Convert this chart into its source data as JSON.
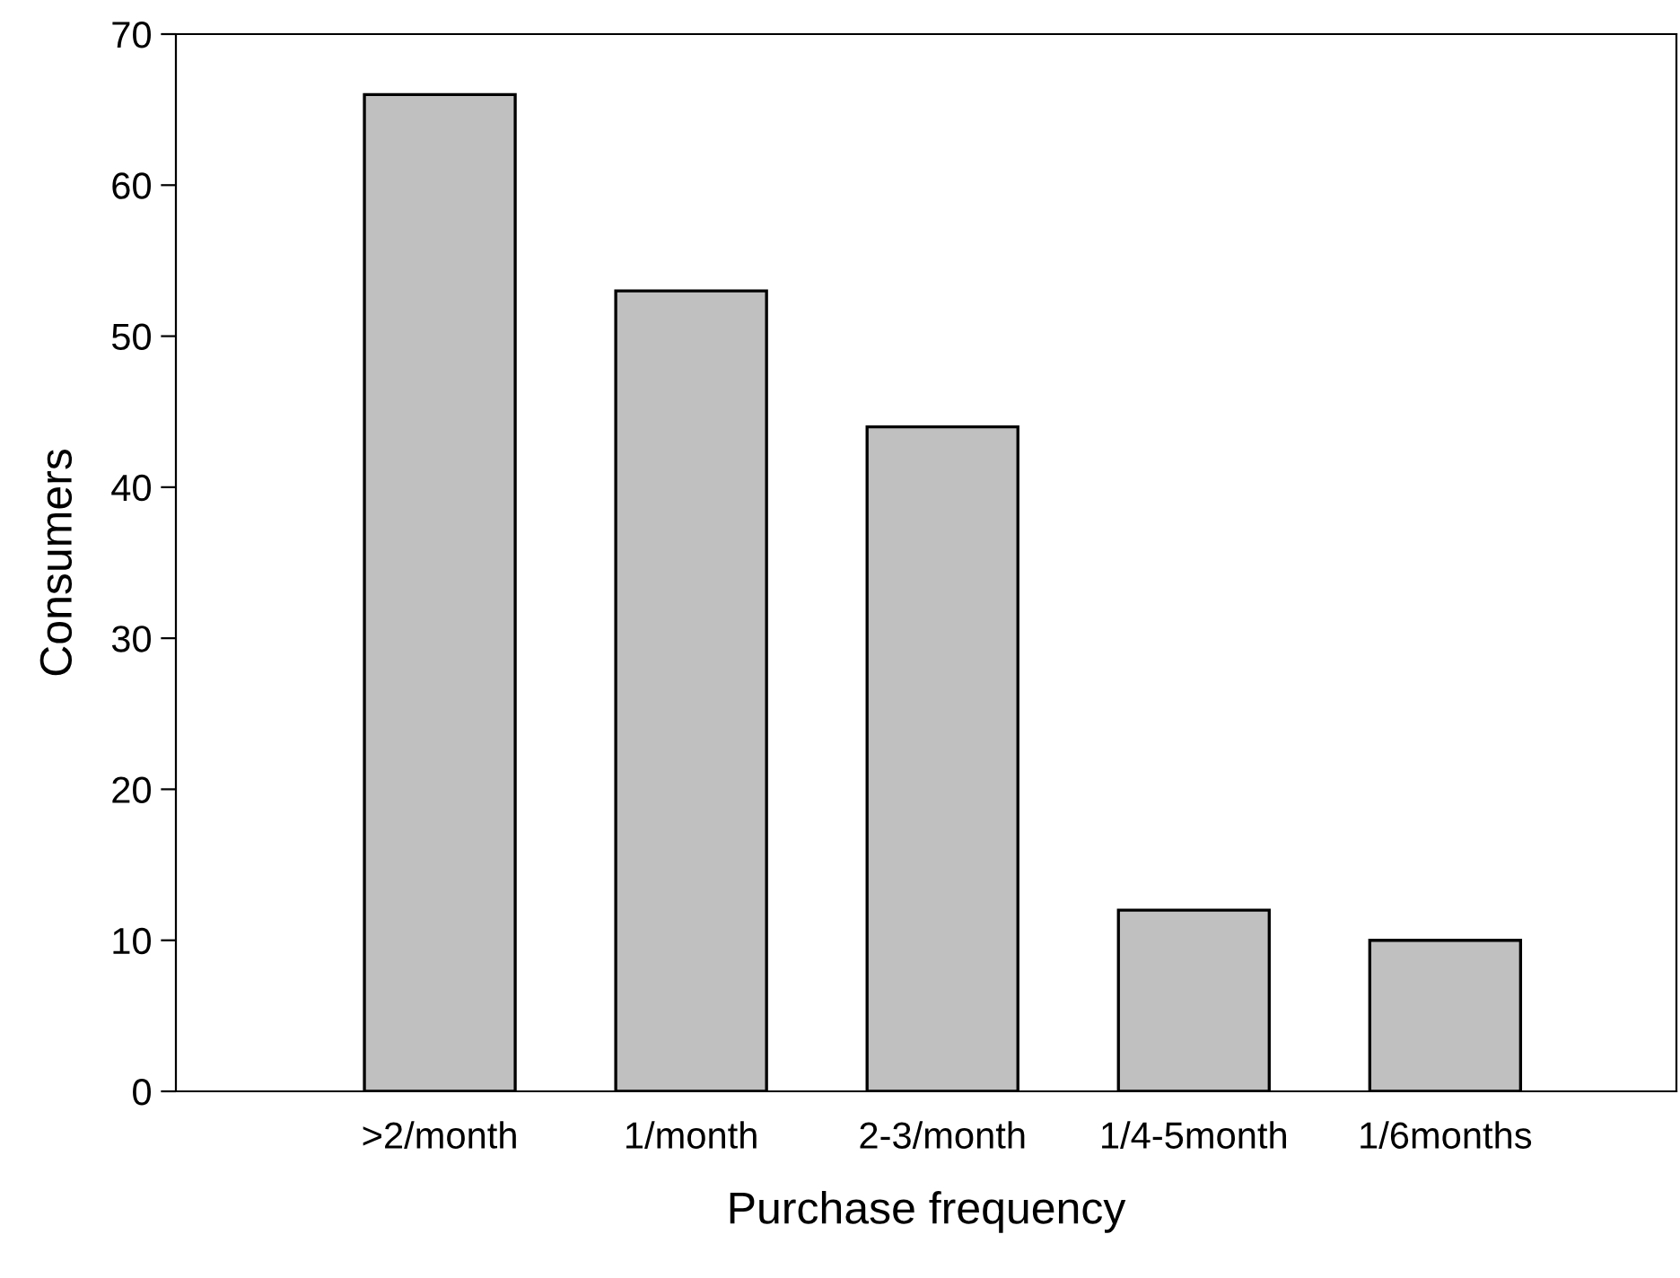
{
  "chart_data": {
    "type": "bar",
    "xlabel": "Purchase frequency",
    "ylabel": "Consumers",
    "categories": [
      ">2/month",
      "1/month",
      "2-3/month",
      "1/4-5month",
      "1/6months"
    ],
    "values": [
      66,
      53,
      44,
      12,
      10
    ],
    "color": "#c0c0c0",
    "ylim": [
      0,
      70
    ],
    "yticks": [
      0,
      10,
      20,
      30,
      40,
      50,
      60,
      70
    ],
    "grid": false,
    "legend": false
  }
}
